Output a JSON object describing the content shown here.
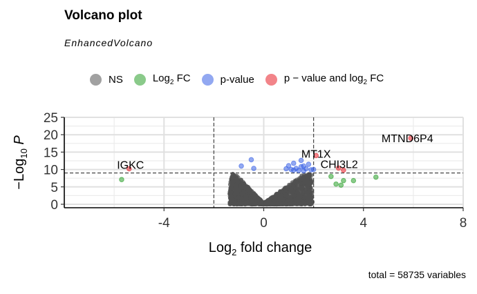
{
  "title": "Volcano plot",
  "subtitle": "EnhancedVolcano",
  "caption": "total = 58735 variables",
  "legend": [
    {
      "label": "NS",
      "sub": "",
      "tail": "",
      "color": "#555555"
    },
    {
      "label": "Log",
      "sub": "2",
      "tail": " FC",
      "color": "#2ca02c"
    },
    {
      "label": "p-value",
      "sub": "",
      "tail": "",
      "color": "#3a62e6"
    },
    {
      "label": "p − value and log",
      "sub": "2",
      "tail": " FC",
      "color": "#e8202a"
    }
  ],
  "chart_data": {
    "type": "scatter",
    "title": "Volcano plot",
    "subtitle": "EnhancedVolcano",
    "xlabel": "Log2 fold change",
    "ylabel": "−Log10 P",
    "xlim": [
      -8,
      8
    ],
    "ylim": [
      -1,
      25
    ],
    "x_ticks": [
      -4,
      0,
      4,
      8
    ],
    "y_ticks": [
      0,
      5,
      10,
      15,
      20,
      25
    ],
    "cutoffs": {
      "log2fc": [
        -2,
        2
      ],
      "neg_log10_p": 9
    },
    "grid": true,
    "legend_position": "top",
    "series": [
      {
        "name": "Log2 FC",
        "color": "#2ca02c",
        "points": [
          [
            -5.7,
            7.1
          ],
          [
            2.7,
            8.0
          ],
          [
            2.9,
            5.8
          ],
          [
            3.1,
            5.5
          ],
          [
            3.2,
            6.8
          ],
          [
            3.6,
            6.8
          ],
          [
            4.5,
            7.8
          ]
        ]
      },
      {
        "name": "p-value",
        "color": "#3a62e6",
        "points": [
          [
            -0.9,
            11.0
          ],
          [
            -0.5,
            12.8
          ],
          [
            -0.4,
            10.3
          ],
          [
            0.9,
            10.2
          ],
          [
            1.0,
            11.1
          ],
          [
            1.1,
            10.0
          ],
          [
            1.2,
            9.8
          ],
          [
            1.3,
            10.3
          ],
          [
            1.4,
            9.7
          ],
          [
            1.5,
            10.8
          ],
          [
            1.5,
            12.6
          ],
          [
            1.6,
            9.6
          ],
          [
            1.7,
            10.2
          ],
          [
            1.8,
            11.5
          ],
          [
            1.9,
            9.9
          ],
          [
            2.0,
            10.0
          ],
          [
            1.2,
            11.8
          ],
          [
            1.6,
            11.0
          ]
        ]
      },
      {
        "name": "p − value and log2 FC",
        "color": "#e8202a",
        "points": [
          [
            -5.4,
            10.2
          ],
          [
            2.1,
            14.0
          ],
          [
            3.0,
            10.4
          ],
          [
            3.2,
            9.8
          ],
          [
            5.9,
            19.0
          ]
        ]
      }
    ],
    "labels": [
      {
        "text": "MTND6P4",
        "x": 5.9,
        "y": 19.0
      },
      {
        "text": "MT1X",
        "x": 2.1,
        "y": 14.0
      },
      {
        "text": "CHI3L2",
        "x": 3.0,
        "y": 10.4
      },
      {
        "text": "IGKC",
        "x": -5.4,
        "y": 10.2
      }
    ],
    "ns_cloud": {
      "name": "NS",
      "color": "#505050",
      "description": "dense V-shaped cloud of non-significant points, |log2FC| < 2, -log10 P < 9"
    }
  }
}
